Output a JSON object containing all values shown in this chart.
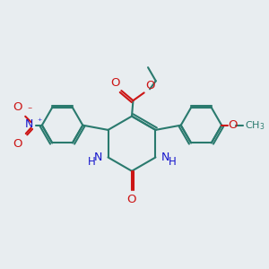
{
  "bg_color": "#e8edf0",
  "bond_color": "#2a7a6e",
  "n_color": "#1515cc",
  "o_color": "#cc1515",
  "figsize": [
    3.0,
    3.0
  ],
  "dpi": 100,
  "xlim": [
    0,
    10
  ],
  "ylim": [
    0,
    10
  ]
}
